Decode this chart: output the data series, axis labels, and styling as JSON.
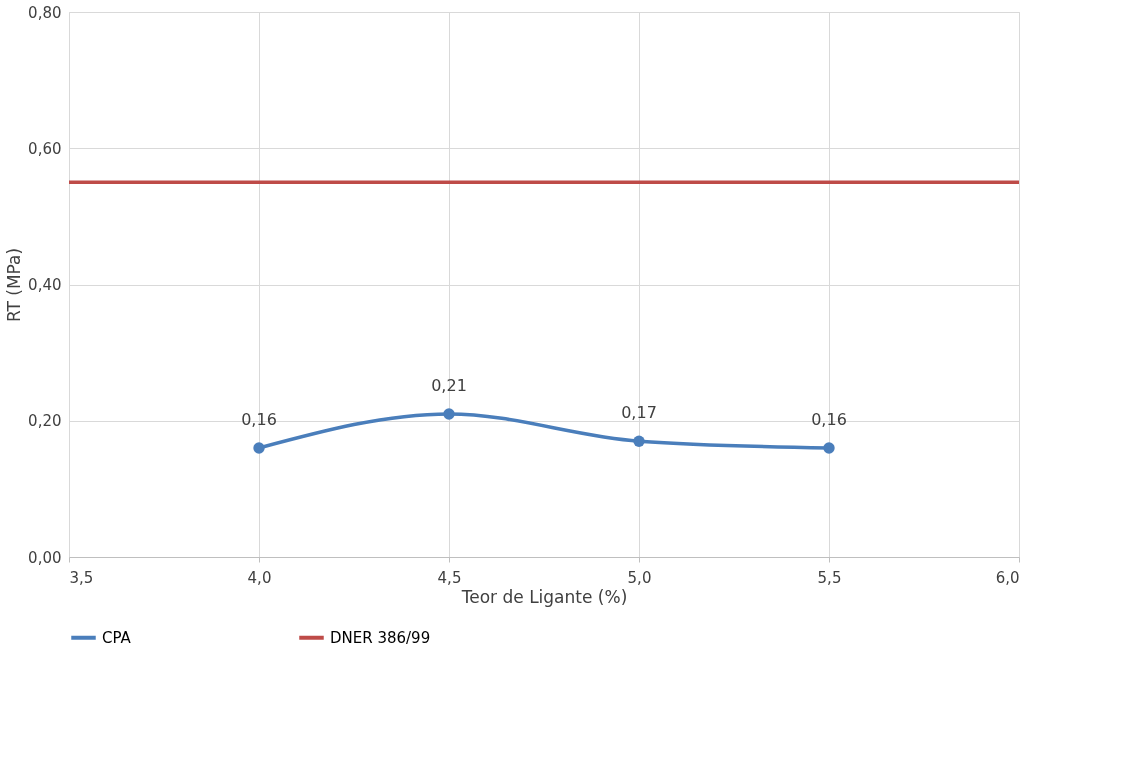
{
  "chart_data": {
    "type": "line",
    "xlabel": "Teor de Ligante (%)",
    "ylabel": "RT (MPa)",
    "x": [
      4.0,
      4.5,
      5.0,
      5.5
    ],
    "series": [
      {
        "name": "CPA",
        "color": "#4a7ebb",
        "values": [
          0.16,
          0.21,
          0.17,
          0.16
        ],
        "value_labels": [
          "0,16",
          "0,21",
          "0,17",
          "0,16"
        ],
        "marker": "circle"
      },
      {
        "name": "DNER 386/99",
        "color": "#be4b48",
        "x": [
          3.5,
          6.0
        ],
        "values": [
          0.55,
          0.55
        ],
        "marker": "none"
      }
    ],
    "xlim": [
      3.5,
      6.0
    ],
    "xticks": [
      {
        "value": 3.5,
        "label": "3,5"
      },
      {
        "value": 4.0,
        "label": "4,0"
      },
      {
        "value": 4.5,
        "label": "4,5"
      },
      {
        "value": 5.0,
        "label": "5,0"
      },
      {
        "value": 5.5,
        "label": "5,5"
      },
      {
        "value": 6.0,
        "label": "6,0"
      }
    ],
    "ylim": [
      0,
      0.8
    ],
    "yticks": [
      {
        "value": 0,
        "label": "0,00"
      },
      {
        "value": 0.2,
        "label": "0,20"
      },
      {
        "value": 0.4,
        "label": "0,40"
      },
      {
        "value": 0.6,
        "label": "0,60"
      },
      {
        "value": 0.8,
        "label": "0,80"
      }
    ],
    "grid": true,
    "legend": "bottom",
    "line_style": "solid"
  }
}
